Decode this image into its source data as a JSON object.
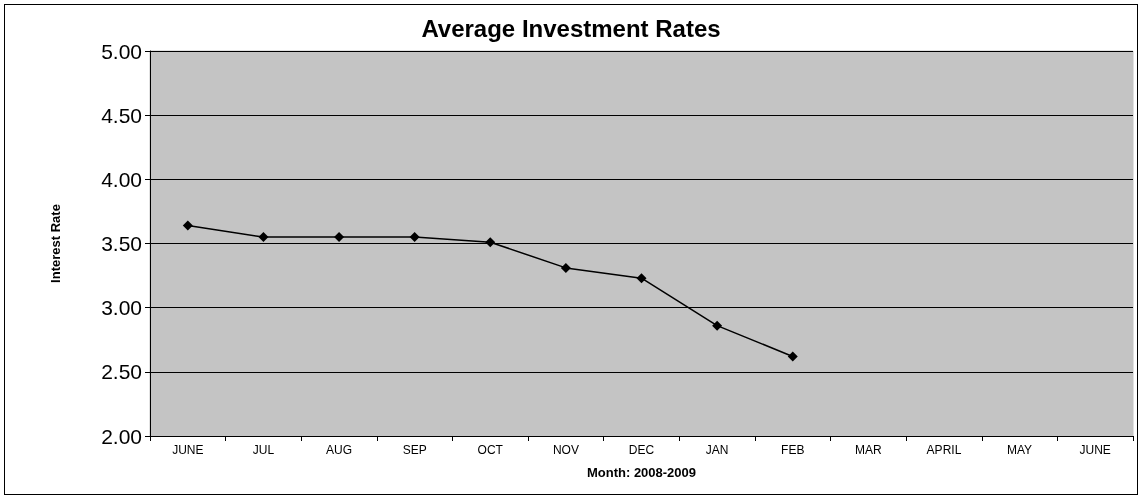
{
  "chart_data": {
    "type": "line",
    "title": "Average Investment Rates",
    "xlabel": "Month: 2008-2009",
    "ylabel": "Interest Rate",
    "categories": [
      "JUNE",
      "JUL",
      "AUG",
      "SEP",
      "OCT",
      "NOV",
      "DEC",
      "JAN",
      "FEB",
      "MAR",
      "APRIL",
      "MAY",
      "JUNE"
    ],
    "series": [
      {
        "color": "#000000",
        "values": [
          3.64,
          3.55,
          3.55,
          3.55,
          3.51,
          3.31,
          3.23,
          2.86,
          2.62,
          null,
          null,
          null,
          null
        ]
      }
    ],
    "ylim": [
      2,
      5
    ],
    "yticks": [
      {
        "value": 2,
        "label": "2.00"
      },
      {
        "value": 2.5,
        "label": "2.50"
      },
      {
        "value": 3,
        "label": "3.00"
      },
      {
        "value": 3.5,
        "label": "3.50"
      },
      {
        "value": 4,
        "label": "4.00"
      },
      {
        "value": 4.5,
        "label": "4.50"
      },
      {
        "value": 5,
        "label": "5.00"
      }
    ],
    "grid": "y",
    "marker": "diamond",
    "line_style": "solid"
  }
}
